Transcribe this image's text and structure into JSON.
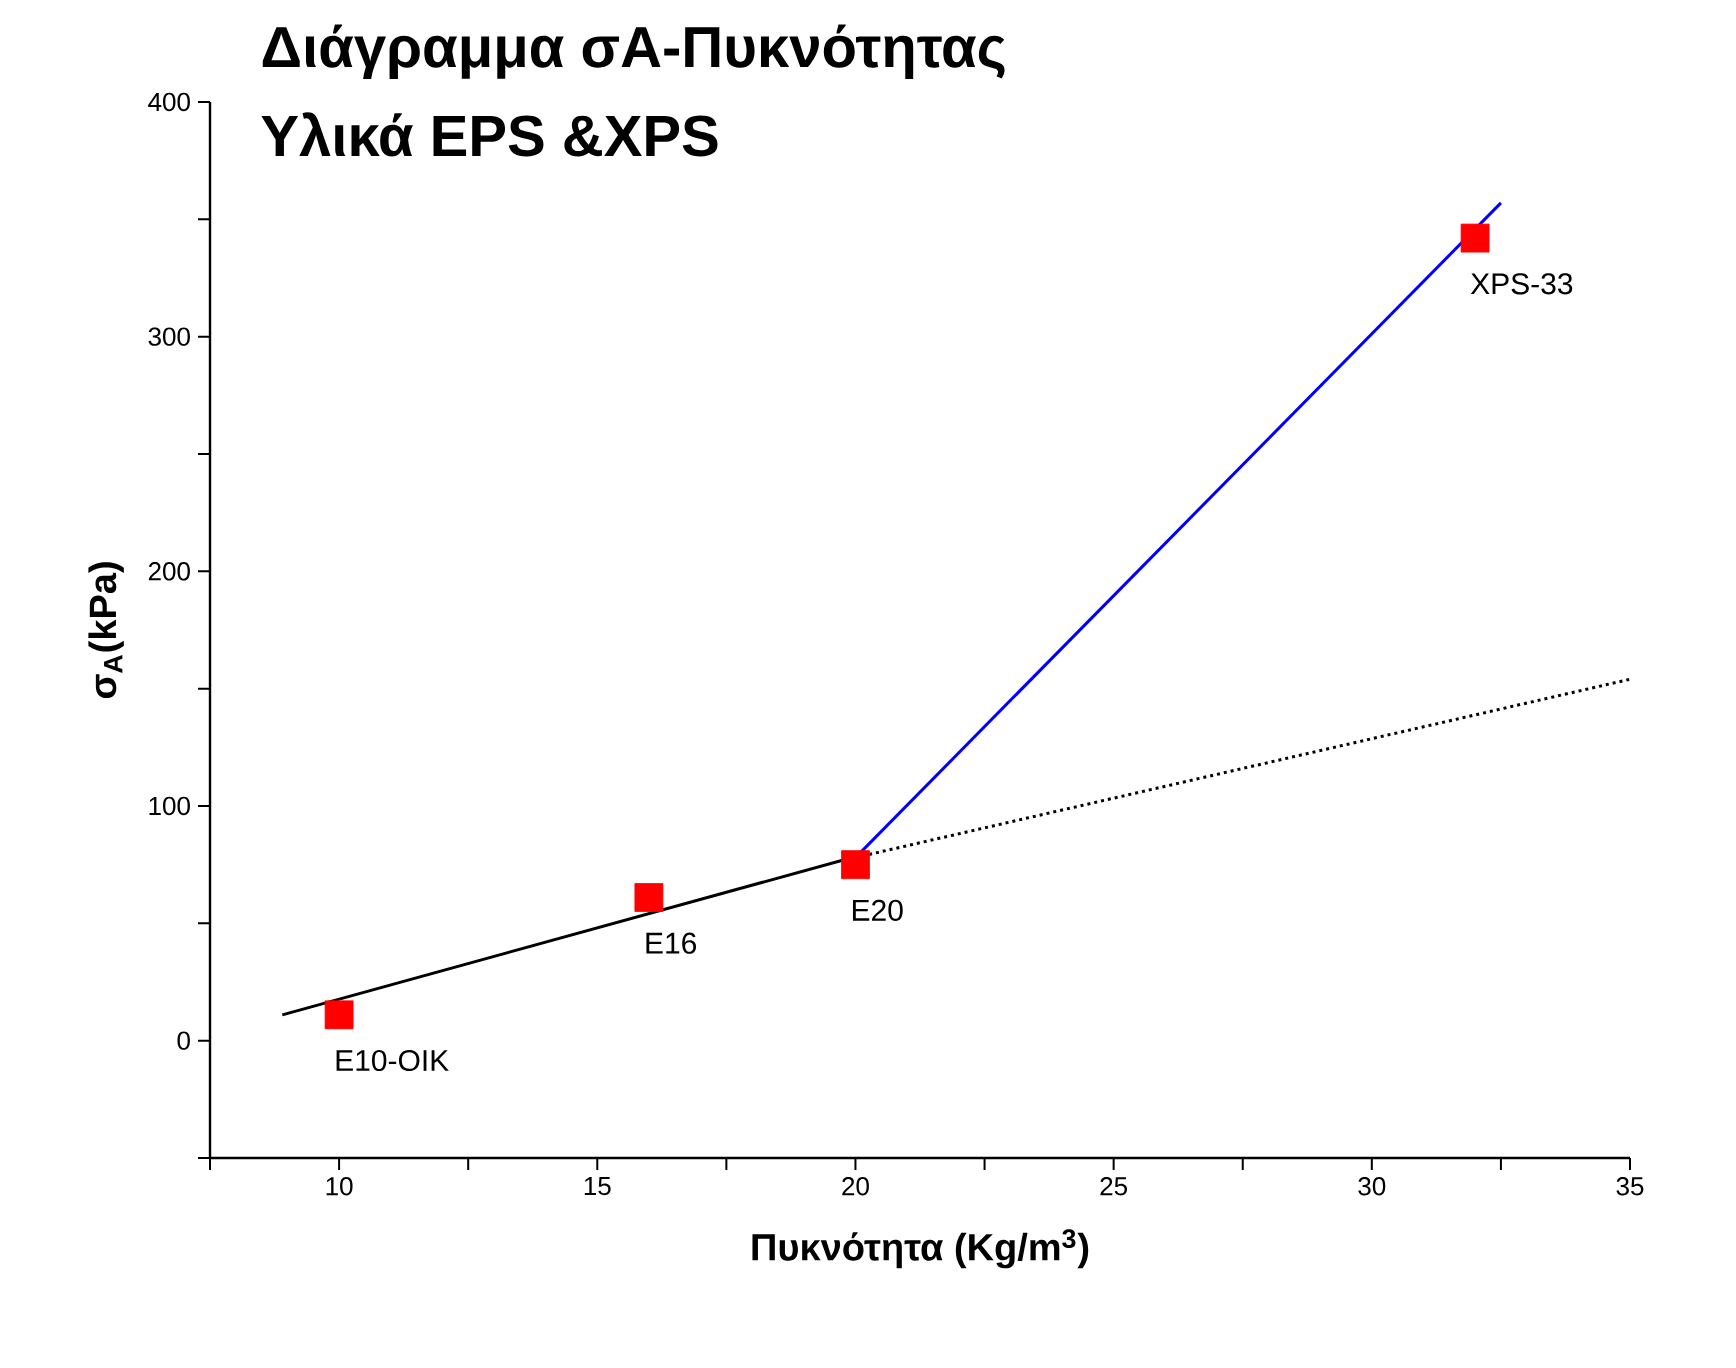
{
  "chart_data": {
    "type": "scatter",
    "title": "Διάγραμμα σA-Πυκνότητας",
    "subtitle": "Υλικά EPS &XPS",
    "xlabel": "Πυκνότητα (Kg/m$^{3}$)",
    "ylabel": "σ$_{A}$(kPa)",
    "xlim": [
      7.5,
      35
    ],
    "ylim": [
      -50,
      400
    ],
    "xticks": [
      {
        "value": 7.5,
        "label": null
      },
      10,
      {
        "value": 12.5,
        "label": null
      },
      15,
      {
        "value": 17.5,
        "label": null
      },
      20,
      {
        "value": 22.5,
        "label": null
      },
      25,
      {
        "value": 27.5,
        "label": null
      },
      30,
      {
        "value": 32.5,
        "label": null
      },
      35
    ],
    "yticks": [
      {
        "value": -50,
        "label": null
      },
      0,
      {
        "value": 50,
        "label": null
      },
      100,
      {
        "value": 150,
        "label": null
      },
      200,
      {
        "value": 250,
        "label": null
      },
      300,
      {
        "value": 350,
        "label": null
      },
      400
    ],
    "series": [
      {
        "type": "scatter",
        "color": "#ff0000",
        "marker": "square",
        "x": [
          10,
          16,
          20,
          32
        ],
        "values": [
          11,
          61,
          75,
          342
        ]
      },
      {
        "type": "line",
        "color": "#000000",
        "marker": "none",
        "line_style": "solid",
        "x": [
          8.9,
          20.1
        ],
        "values": [
          11,
          79
        ]
      },
      {
        "type": "line",
        "color": "#000000",
        "marker": "none",
        "line_style": "dotted",
        "x": [
          20,
          35
        ],
        "values": [
          78,
          154
        ]
      },
      {
        "type": "line",
        "color": "#0000ff",
        "marker": "none",
        "line_style": "solid",
        "x": [
          20,
          32.5
        ],
        "values": [
          78,
          357
        ]
      }
    ],
    "annotations": [
      {
        "text": "E10-OIK",
        "x": 10,
        "y": 11
      },
      {
        "text": "E16",
        "x": 16,
        "y": 61
      },
      {
        "text": "E20",
        "x": 20,
        "y": 75
      },
      {
        "text": "XPS-33",
        "x": 32,
        "y": 342
      }
    ]
  }
}
